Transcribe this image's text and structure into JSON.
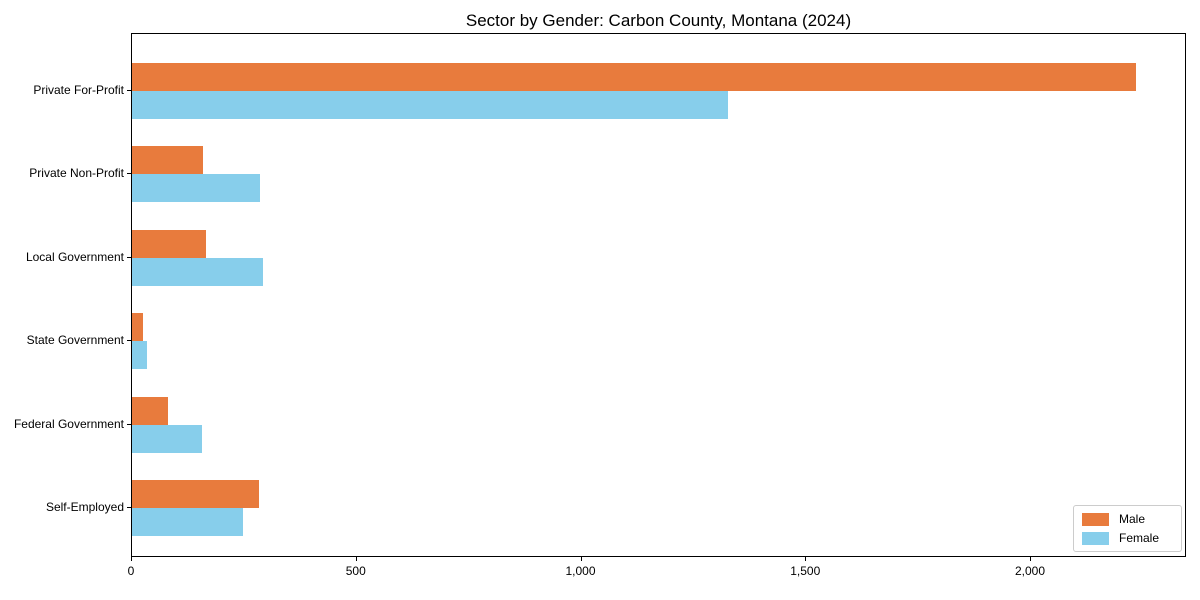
{
  "chart_data": {
    "type": "bar",
    "orientation": "horizontal",
    "title": "Sector by Gender: Carbon County, Montana (2024)",
    "categories": [
      "Private For-Profit",
      "Private Non-Profit",
      "Local Government",
      "State Government",
      "Federal Government",
      "Self-Employed"
    ],
    "series": [
      {
        "name": "Male",
        "color": "#e87b3d",
        "values": [
          2234,
          158,
          165,
          25,
          80,
          282
        ]
      },
      {
        "name": "Female",
        "color": "#87ceeb",
        "values": [
          1326,
          285,
          291,
          33,
          156,
          246
        ]
      }
    ],
    "xlabel": "",
    "ylabel": "",
    "xlim": [
      0,
      2347
    ],
    "xticks": [
      0,
      500,
      1000,
      1500,
      2000
    ],
    "xtick_labels": [
      "0",
      "500",
      "1,000",
      "1,500",
      "2,000"
    ],
    "grid": false,
    "legend_position": "lower right"
  },
  "colors": {
    "background": "#ffffff",
    "axis": "#000000",
    "text": "#000000",
    "legend_border": "#cccccc",
    "male": "#e87b3d",
    "female": "#87ceeb"
  }
}
